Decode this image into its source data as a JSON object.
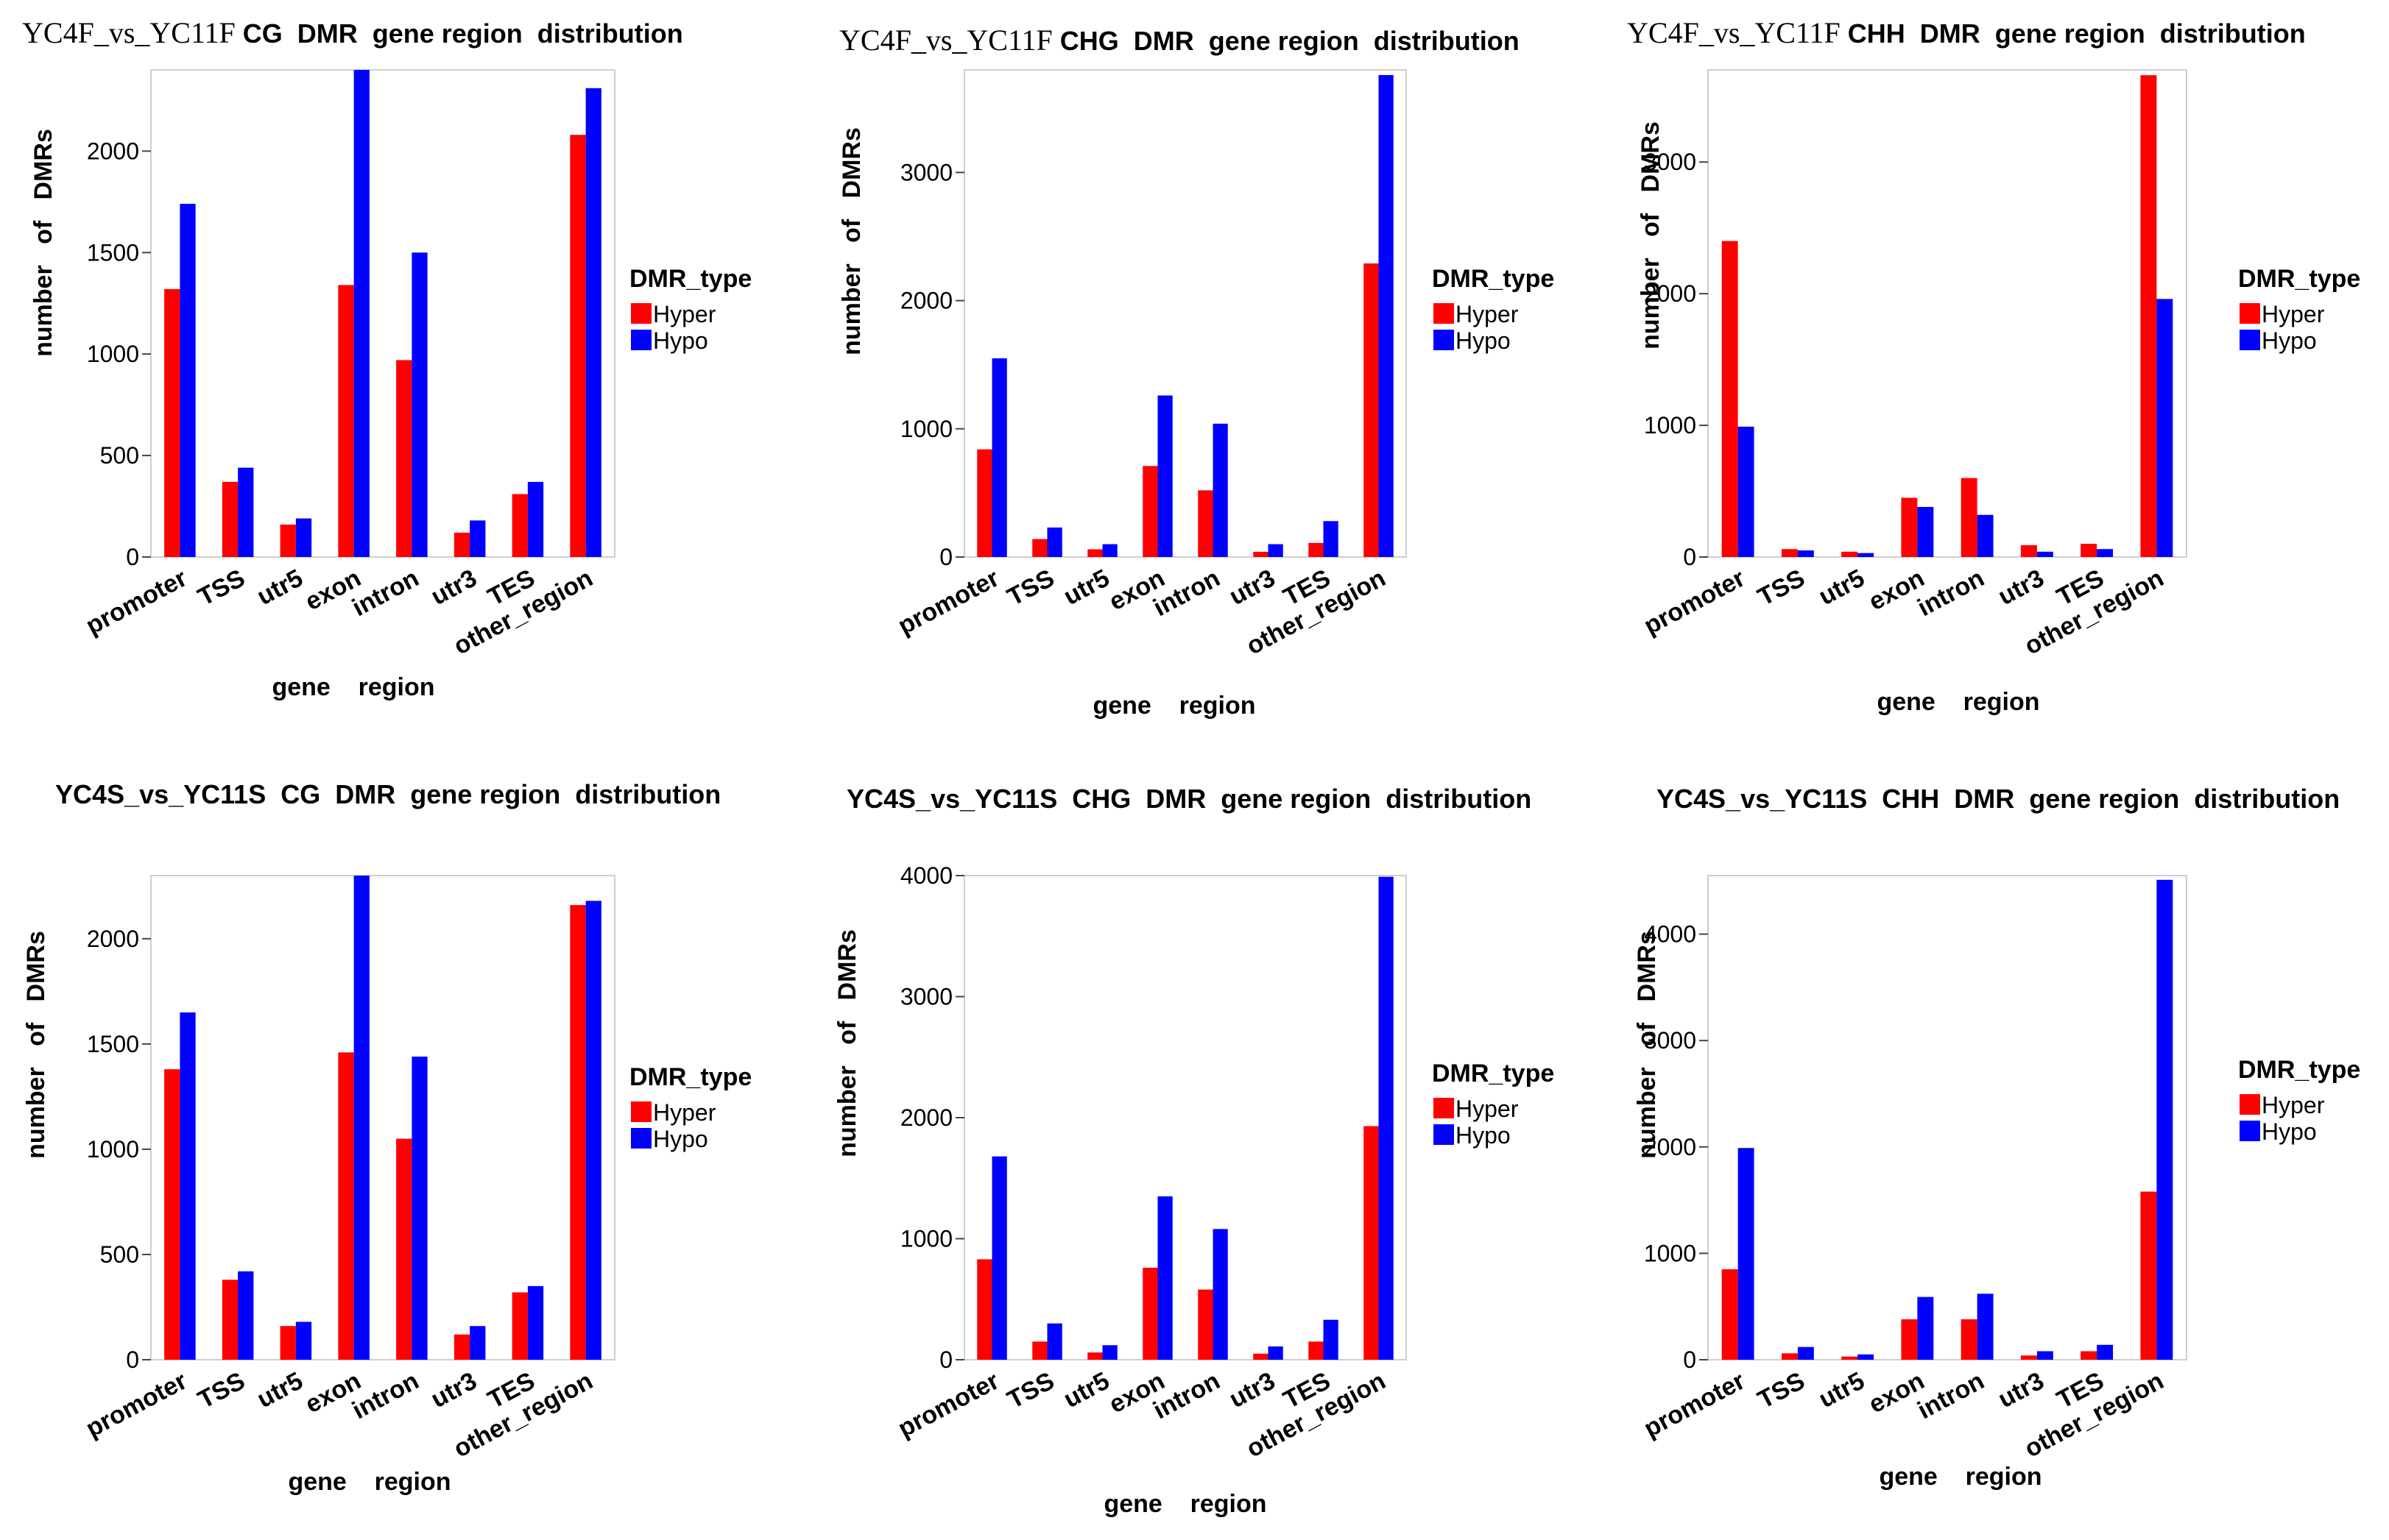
{
  "figure": {
    "legend": {
      "title": "DMR_type",
      "items": [
        {
          "label": "Hyper",
          "color": "#ff0000"
        },
        {
          "label": "Hypo",
          "color": "#0000ff"
        }
      ]
    }
  },
  "chart_data": [
    {
      "type": "bar",
      "title": "YC4F_vs_YC11F CG DMR gene region distribution",
      "title_prefix": "YC4F_vs_YC11F",
      "title_rest": "CG  DMR  gene region  distribution",
      "xlabel": "gene    region",
      "ylabel": "number   of   DMRs",
      "categories": [
        "promoter",
        "TSS",
        "utr5",
        "exon",
        "intron",
        "utr3",
        "TES",
        "other_region"
      ],
      "ylim": [
        0,
        2400
      ],
      "yticks": [
        0,
        500,
        1000,
        1500,
        2000
      ],
      "legend_position": "right",
      "series": [
        {
          "name": "Hyper",
          "color": "#ff0000",
          "values": [
            1320,
            370,
            160,
            1340,
            970,
            120,
            310,
            2080
          ]
        },
        {
          "name": "Hypo",
          "color": "#0000ff",
          "values": [
            1740,
            440,
            190,
            2400,
            1500,
            180,
            370,
            2310
          ]
        }
      ]
    },
    {
      "type": "bar",
      "title": "YC4F_vs_YC11FCHG DMR gene region distribution",
      "title_prefix": "YC4F_vs_YC11F",
      "title_rest": "CHG  DMR  gene region  distribution",
      "xlabel": "gene    region",
      "ylabel": "number   of   DMRs",
      "categories": [
        "promoter",
        "TSS",
        "utr5",
        "exon",
        "intron",
        "utr3",
        "TES",
        "other_region"
      ],
      "ylim": [
        0,
        3800
      ],
      "yticks": [
        0,
        1000,
        2000,
        3000
      ],
      "legend_position": "right",
      "series": [
        {
          "name": "Hyper",
          "color": "#ff0000",
          "values": [
            840,
            140,
            60,
            710,
            520,
            40,
            110,
            2290
          ]
        },
        {
          "name": "Hypo",
          "color": "#0000ff",
          "values": [
            1550,
            230,
            100,
            1260,
            1040,
            100,
            280,
            3760
          ]
        }
      ]
    },
    {
      "type": "bar",
      "title": "YC4F_vs_YC11F CHH DMR gene region distribution",
      "title_prefix": "YC4F_vs_YC11F",
      "title_rest": "CHH  DMR  gene region  distribution",
      "xlabel": "gene    region",
      "ylabel": "number   of   DMRs",
      "categories": [
        "promoter",
        "TSS",
        "utr5",
        "exon",
        "intron",
        "utr3",
        "TES",
        "other_region"
      ],
      "ylim": [
        0,
        3700
      ],
      "yticks": [
        0,
        1000,
        2000,
        3000
      ],
      "legend_position": "right",
      "series": [
        {
          "name": "Hyper",
          "color": "#ff0000",
          "values": [
            2400,
            60,
            40,
            450,
            600,
            90,
            100,
            3660
          ]
        },
        {
          "name": "Hypo",
          "color": "#0000ff",
          "values": [
            990,
            50,
            30,
            380,
            320,
            40,
            60,
            1960
          ]
        }
      ]
    },
    {
      "type": "bar",
      "title": "YC4S_vs_YC11S CG DMR gene region distribution",
      "title_text": "YC4S_vs_YC11S  CG  DMR  gene region  distribution",
      "xlabel": "gene    region",
      "ylabel": "number   of   DMRs",
      "categories": [
        "promoter",
        "TSS",
        "utr5",
        "exon",
        "intron",
        "utr3",
        "TES",
        "other_region"
      ],
      "ylim": [
        0,
        2300
      ],
      "yticks": [
        0,
        500,
        1000,
        1500,
        2000
      ],
      "legend_position": "right",
      "series": [
        {
          "name": "Hyper",
          "color": "#ff0000",
          "values": [
            1380,
            380,
            160,
            1460,
            1050,
            120,
            320,
            2160
          ]
        },
        {
          "name": "Hypo",
          "color": "#0000ff",
          "values": [
            1650,
            420,
            180,
            2300,
            1440,
            160,
            350,
            2180
          ]
        }
      ]
    },
    {
      "type": "bar",
      "title": "YC4S_vs_YC11S CHG DMR gene region distribution",
      "title_text": "YC4S_vs_YC11S  CHG  DMR  gene region  distribution",
      "xlabel": "gene    region",
      "ylabel": "number   of   DMRs",
      "categories": [
        "promoter",
        "TSS",
        "utr5",
        "exon",
        "intron",
        "utr3",
        "TES",
        "other_region"
      ],
      "ylim": [
        0,
        4000
      ],
      "yticks": [
        0,
        1000,
        2000,
        3000,
        4000
      ],
      "legend_position": "right",
      "series": [
        {
          "name": "Hyper",
          "color": "#ff0000",
          "values": [
            830,
            150,
            60,
            760,
            580,
            50,
            150,
            1930
          ]
        },
        {
          "name": "Hypo",
          "color": "#0000ff",
          "values": [
            1680,
            300,
            120,
            1350,
            1080,
            110,
            330,
            3990
          ]
        }
      ]
    },
    {
      "type": "bar",
      "title": "YC4S_vs_YC11S CHH DMR gene region distribution",
      "title_text": "YC4S_vs_YC11S  CHH  DMR  gene region  distribution",
      "xlabel": "gene    region",
      "ylabel": "number   of   DMRs",
      "categories": [
        "promoter",
        "TSS",
        "utr5",
        "exon",
        "intron",
        "utr3",
        "TES",
        "other_region"
      ],
      "ylim": [
        0,
        4550
      ],
      "yticks": [
        0,
        1000,
        2000,
        3000,
        4000
      ],
      "legend_position": "right",
      "series": [
        {
          "name": "Hyper",
          "color": "#ff0000",
          "values": [
            850,
            60,
            30,
            380,
            380,
            40,
            80,
            1580
          ]
        },
        {
          "name": "Hypo",
          "color": "#0000ff",
          "values": [
            1990,
            120,
            50,
            590,
            620,
            80,
            140,
            4510
          ]
        }
      ]
    }
  ]
}
